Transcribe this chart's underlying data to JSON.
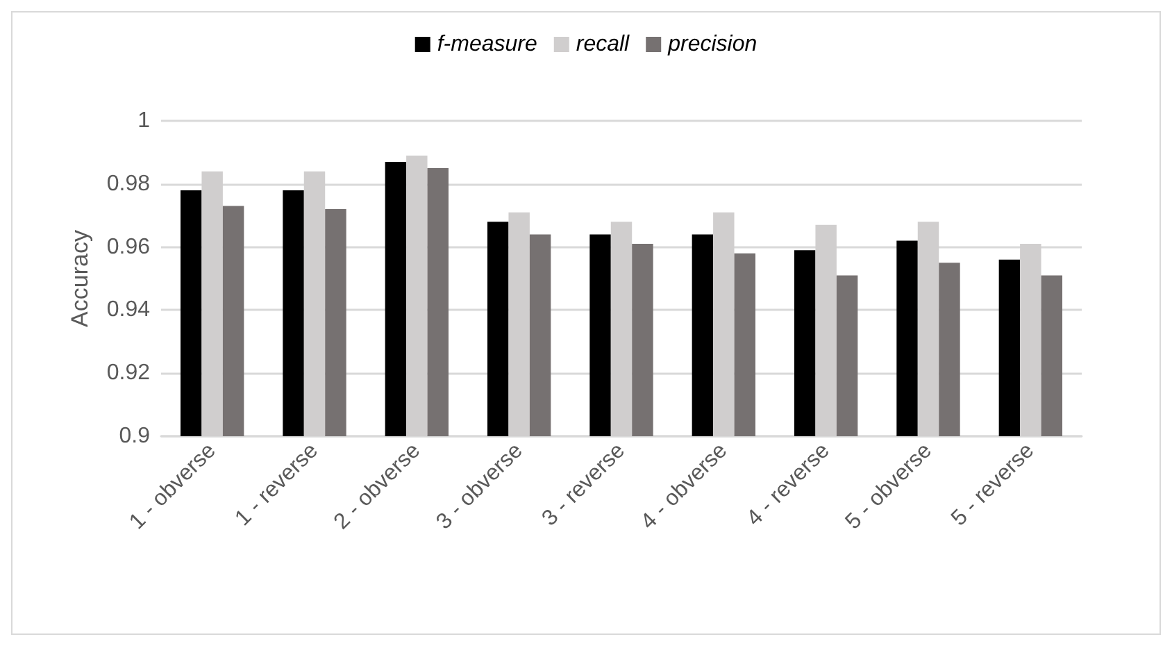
{
  "chart_data": {
    "type": "bar",
    "ylabel": "Accuracy",
    "categories": [
      "1 - obverse",
      "1 - reverse",
      "2 - obverse",
      "3 - obverse",
      "3 - reverse",
      "4 - obverse",
      "4 - reverse",
      "5 - obverse",
      "5 - reverse"
    ],
    "series": [
      {
        "name": "f-measure",
        "color": "#000000",
        "values": [
          0.978,
          0.978,
          0.987,
          0.968,
          0.964,
          0.964,
          0.959,
          0.962,
          0.956
        ]
      },
      {
        "name": "recall",
        "color": "#d0cece",
        "values": [
          0.984,
          0.984,
          0.989,
          0.971,
          0.968,
          0.971,
          0.967,
          0.968,
          0.961
        ]
      },
      {
        "name": "precision",
        "color": "#767171",
        "values": [
          0.973,
          0.972,
          0.985,
          0.964,
          0.961,
          0.958,
          0.951,
          0.955,
          0.951
        ]
      }
    ],
    "ylim": [
      0.9,
      1
    ],
    "yticks": [
      0.9,
      0.92,
      0.94,
      0.96,
      0.98,
      1
    ],
    "grid": "y",
    "legend": "top"
  }
}
